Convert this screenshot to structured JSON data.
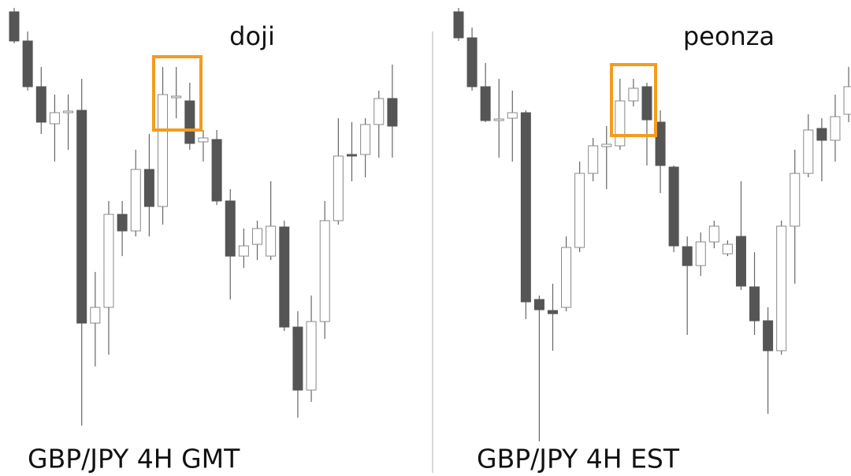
{
  "chart_data": [
    {
      "type": "candlestick",
      "title": "doji",
      "label": "GBP/JPY 4H GMT",
      "ylim": [
        0,
        604
      ],
      "bull_color": "#ffffff",
      "bear_color": "#555555",
      "highlight_color": "#f39c1f",
      "open": [
        589,
        552,
        494,
        447,
        461,
        464,
        194,
        214,
        332,
        311,
        389,
        342,
        480,
        476,
        424,
        427,
        349,
        279,
        294,
        279,
        316,
        189,
        109,
        196,
        324,
        408,
        408,
        446,
        479
      ],
      "high": [
        594,
        564,
        519,
        484,
        484,
        504,
        259,
        349,
        349,
        414,
        434,
        519,
        519,
        499,
        439,
        439,
        364,
        314,
        324,
        374,
        324,
        209,
        229,
        349,
        454,
        449,
        454,
        489,
        522
      ],
      "low": [
        549,
        489,
        434,
        399,
        414,
        64,
        139,
        154,
        279,
        304,
        304,
        319,
        454,
        414,
        399,
        344,
        224,
        264,
        274,
        274,
        184,
        74,
        94,
        174,
        319,
        374,
        379,
        404,
        404
      ],
      "close": [
        552,
        494,
        449,
        461,
        463,
        194,
        214,
        332,
        311,
        389,
        342,
        484,
        482,
        422,
        429,
        349,
        279,
        292,
        314,
        317,
        189,
        109,
        196,
        324,
        406,
        406,
        446,
        479,
        444
      ]
    },
    {
      "type": "candlestick",
      "title": "peonza",
      "label": "GBP/JPY 4H EST",
      "ylim": [
        0,
        604
      ],
      "bull_color": "#ffffff",
      "bear_color": "#555555",
      "highlight_color": "#f39c1f",
      "open": [
        589,
        556,
        494,
        451,
        454,
        461,
        224,
        210,
        214,
        290,
        384,
        418,
        419,
        476,
        494,
        449,
        392,
        291,
        267,
        297,
        282,
        304,
        240,
        197,
        159,
        317,
        384,
        441,
        426,
        459
      ],
      "high": [
        594,
        569,
        524,
        504,
        489,
        464,
        229,
        244,
        304,
        399,
        429,
        444,
        504,
        504,
        499,
        464,
        394,
        304,
        309,
        324,
        299,
        374,
        284,
        214,
        324,
        414,
        459,
        454,
        484,
        519
      ],
      "low": [
        552,
        489,
        449,
        404,
        399,
        199,
        44,
        159,
        209,
        284,
        374,
        364,
        414,
        469,
        394,
        359,
        284,
        179,
        254,
        289,
        279,
        236,
        179,
        79,
        154,
        244,
        379,
        374,
        399,
        449
      ],
      "close": [
        556,
        494,
        451,
        453,
        461,
        221,
        211,
        206,
        290,
        384,
        419,
        421,
        476,
        492,
        452,
        394,
        292,
        267,
        297,
        317,
        294,
        241,
        197,
        159,
        317,
        384,
        439,
        426,
        456,
        494
      ]
    }
  ]
}
